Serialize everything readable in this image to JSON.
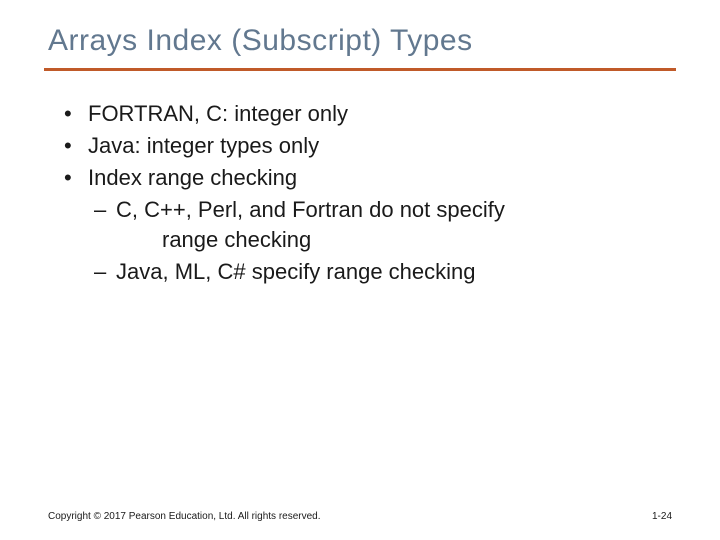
{
  "colors": {
    "title": "#62788f",
    "rule": "#c05a29",
    "body": "#1a1a1a",
    "footer": "#1a1a1a",
    "background": "#ffffff"
  },
  "typography": {
    "title_fontsize": 30,
    "title_weight": 400,
    "body_fontsize": 22,
    "body_lineheight": 30,
    "footer_fontsize": 10,
    "rule_height": 3
  },
  "title": "Arrays Index (Subscript) Types",
  "bullets": [
    {
      "text": "FORTRAN, C: integer only"
    },
    {
      "text": "Java: integer types only"
    },
    {
      "text": "Index range checking",
      "sub": [
        {
          "text": "C, C++, Perl, and Fortran do not specify",
          "cont": "range checking"
        },
        {
          "text": "Java, ML, C# specify range checking"
        }
      ]
    }
  ],
  "footer": {
    "left": "Copyright © 2017 Pearson Education, Ltd. All rights reserved.",
    "right": "1-24"
  }
}
